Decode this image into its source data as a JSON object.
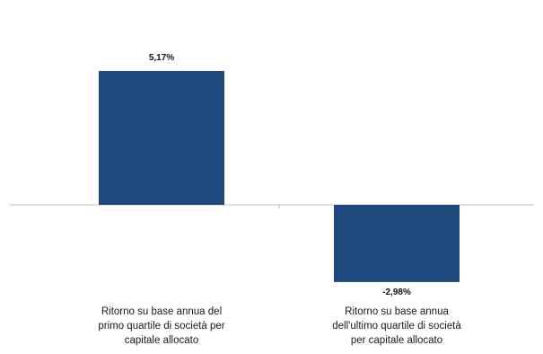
{
  "chart_data": {
    "type": "bar",
    "categories": [
      "Ritorno su base annua del primo quartile di società per capitale allocato",
      "Ritorno su base annua dell'ultimo quartile di società per capitale allocato"
    ],
    "category_lines": [
      [
        "Ritorno su base annua del",
        "primo quartile di società per",
        "capitale allocato"
      ],
      [
        "Ritorno su base annua",
        "dell'ultimo quartile di società",
        "per capitale allocato"
      ]
    ],
    "values": [
      5.17,
      -2.98
    ],
    "value_labels": [
      "5,17%",
      "-2,98%"
    ],
    "ylim": [
      -2.98,
      5.17
    ],
    "colors": {
      "bar": "#1F497D",
      "axis": "#BFBFBF",
      "text": "#1a1a1a"
    },
    "grid": false,
    "legend": "none",
    "title": "",
    "xlabel": "",
    "ylabel": ""
  }
}
